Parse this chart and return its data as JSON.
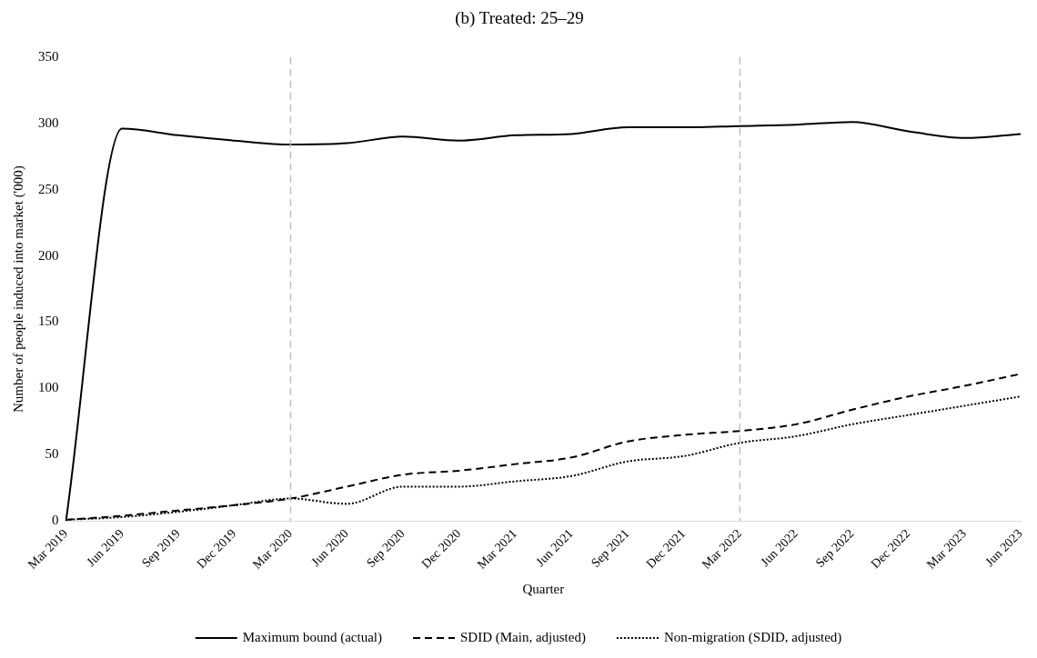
{
  "chart_data": {
    "type": "line",
    "title": "(b) Treated: 25–29",
    "xlabel": "Quarter",
    "ylabel": "Number of people induced into market ('000)",
    "categories": [
      "Mar 2019",
      "Jun 2019",
      "Sep 2019",
      "Dec 2019",
      "Mar 2020",
      "Jun 2020",
      "Sep 2020",
      "Dec 2020",
      "Mar 2021",
      "Jun 2021",
      "Sep 2021",
      "Dec 2021",
      "Mar 2022",
      "Jun 2022",
      "Sep 2022",
      "Dec 2022",
      "Mar 2023",
      "Jun 2023"
    ],
    "series": [
      {
        "name": "Maximum bound (actual)",
        "color": "#000000",
        "line_style": "solid",
        "values": [
          0,
          296,
          291,
          287,
          284,
          285,
          290,
          287,
          291,
          292,
          297,
          297,
          298,
          299,
          301,
          294,
          289,
          292
        ]
      },
      {
        "name": "SDID (Main, adjusted)",
        "color": "#000000",
        "line_style": "dashed",
        "values": [
          1,
          4,
          8,
          12,
          17,
          26,
          35,
          38,
          43,
          48,
          60,
          65,
          68,
          73,
          84,
          94,
          102,
          111
        ]
      },
      {
        "name": "Non-migration (SDID, adjusted)",
        "color": "#000000",
        "line_style": "dotted",
        "values": [
          1,
          3,
          7,
          12,
          17,
          13,
          26,
          26,
          30,
          34,
          45,
          49,
          59,
          64,
          73,
          80,
          87,
          94
        ]
      }
    ],
    "ylim": [
      0,
      350
    ],
    "yticks": [
      0,
      50,
      100,
      150,
      200,
      250,
      300,
      350
    ],
    "ref_lines": [
      {
        "axis": "x",
        "value": "Mar 2020",
        "color": "#bfbfbf",
        "line_style": "dashed"
      },
      {
        "axis": "x",
        "value": "Mar 2022",
        "color": "#bfbfbf",
        "line_style": "dashed"
      }
    ],
    "grid": false,
    "legend": "bottom",
    "marker": "none"
  }
}
